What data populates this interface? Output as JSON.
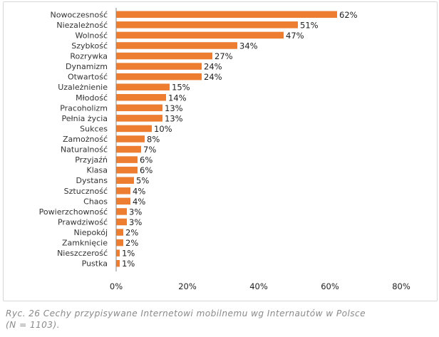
{
  "chart_data": {
    "type": "bar",
    "orientation": "horizontal",
    "categories": [
      "Nowoczesność",
      "Niezależność",
      "Wolność",
      "Szybkość",
      "Rozrywka",
      "Dynamizm",
      "Otwartość",
      "Uzależnienie",
      "Młodość",
      "Pracoholizm",
      "Pełnia życia",
      "Sukces",
      "Zamożność",
      "Naturalność",
      "Przyjaźń",
      "Klasa",
      "Dystans",
      "Sztuczność",
      "Chaos",
      "Powierzchowność",
      "Prawdziwość",
      "Niepokój",
      "Zamknięcie",
      "Nieszczerość",
      "Pustka"
    ],
    "values": [
      62,
      51,
      47,
      34,
      27,
      24,
      24,
      15,
      14,
      13,
      13,
      10,
      8,
      7,
      6,
      6,
      5,
      4,
      4,
      3,
      3,
      2,
      2,
      1,
      1
    ],
    "value_labels": [
      "62%",
      "51%",
      "47%",
      "34%",
      "27%",
      "24%",
      "24%",
      "15%",
      "14%",
      "13%",
      "13%",
      "10%",
      "8%",
      "7%",
      "6%",
      "6%",
      "5%",
      "4%",
      "4%",
      "3%",
      "3%",
      "2%",
      "2%",
      "1%",
      "1%"
    ],
    "xlim": [
      0,
      80
    ],
    "xticks": [
      0,
      20,
      40,
      60,
      80
    ],
    "xtick_labels": [
      "0%",
      "20%",
      "40%",
      "60%",
      "80%"
    ],
    "grid": false,
    "legend": "none",
    "bar_color": "#ed7d31"
  },
  "caption": {
    "line1": "Ryc. 26 Cechy przypisywane Internetowi mobilnemu wg Internautów w Polsce",
    "line2": "(N = 1103)."
  }
}
